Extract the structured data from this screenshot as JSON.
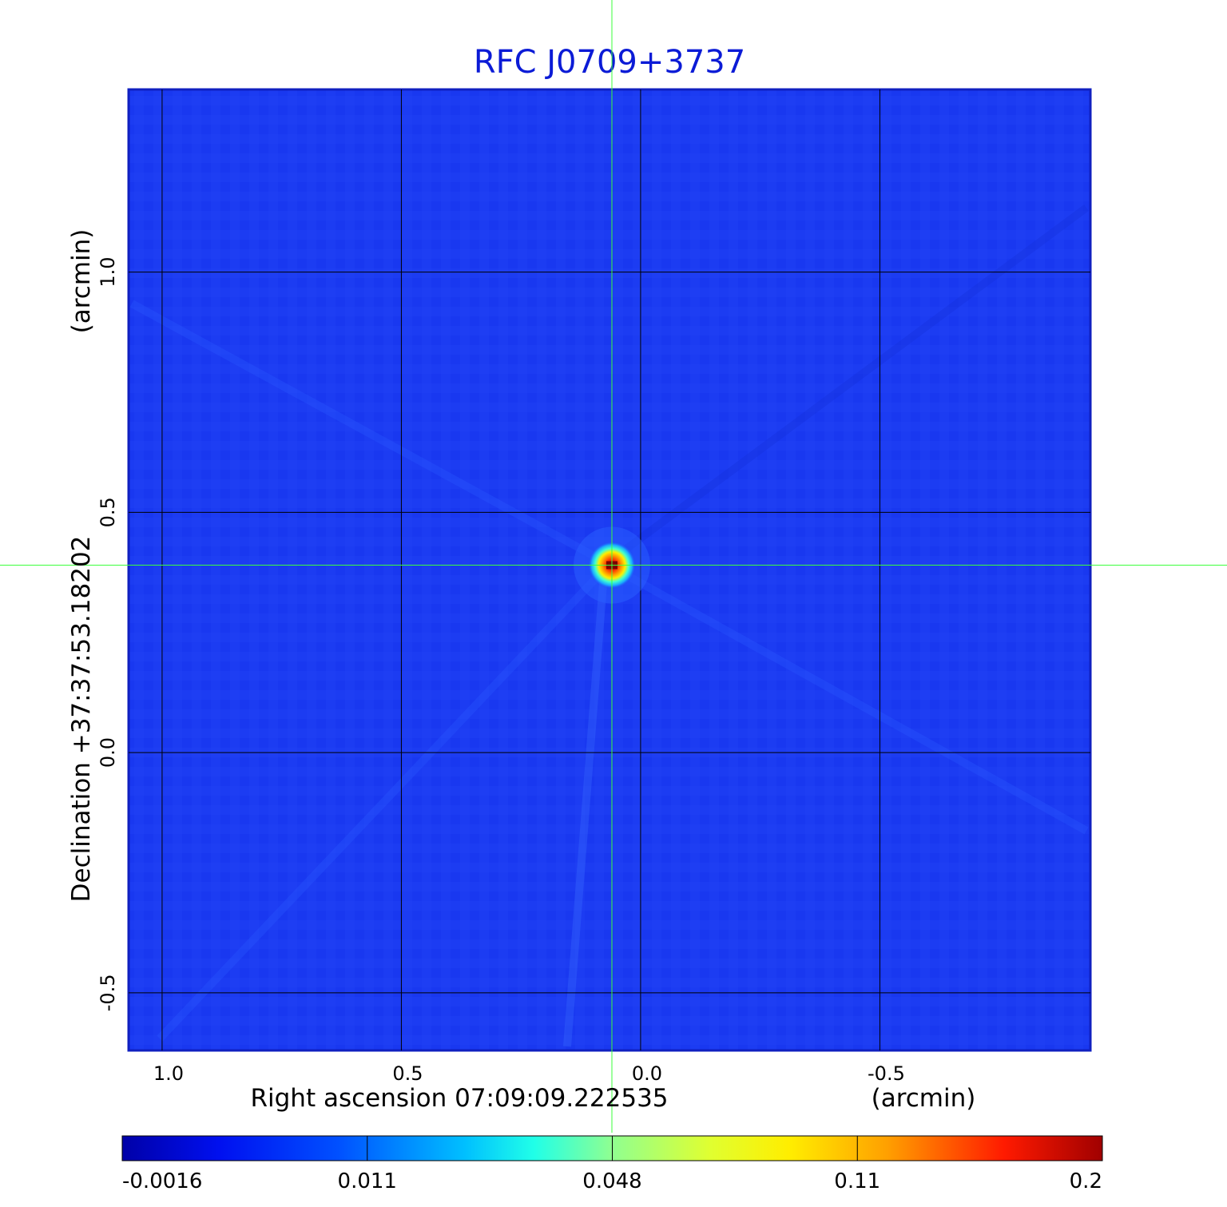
{
  "chart_data": {
    "type": "heatmap",
    "title": "RFC J0709+3737",
    "xlabel": "Right ascension  07:09:09.222535",
    "xunit": "(arcmin)",
    "ylabel": "Declination  +37:37:53.18202",
    "yunit": "(arcmin)",
    "xlim": [
      1.07,
      -0.94
    ],
    "ylim": [
      -0.62,
      1.38
    ],
    "x_ticks": [
      {
        "value": 1.0,
        "label": "1.0"
      },
      {
        "value": 0.5,
        "label": "0.5"
      },
      {
        "value": 0.0,
        "label": "0.0"
      },
      {
        "value": -0.5,
        "label": "-0.5"
      }
    ],
    "y_ticks": [
      {
        "value": 1.0,
        "label": "1.0"
      },
      {
        "value": 0.5,
        "label": "0.5"
      },
      {
        "value": 0.0,
        "label": "0.0"
      },
      {
        "value": -0.5,
        "label": "-0.5"
      }
    ],
    "grid": true,
    "crosshair": {
      "x": 0.06,
      "y": 0.39
    },
    "source_peak": {
      "x": 0.06,
      "y": 0.39,
      "value": 0.2
    },
    "colorbar": {
      "ticks": [
        "-0.0016",
        "0.011",
        "0.048",
        "0.11",
        "0.2"
      ],
      "colormap": "jet"
    },
    "colors": {
      "background_field": "#1c3cf2",
      "grid": "#000000",
      "crosshair": "#3cff3c",
      "title": "#0b1bd6"
    }
  }
}
